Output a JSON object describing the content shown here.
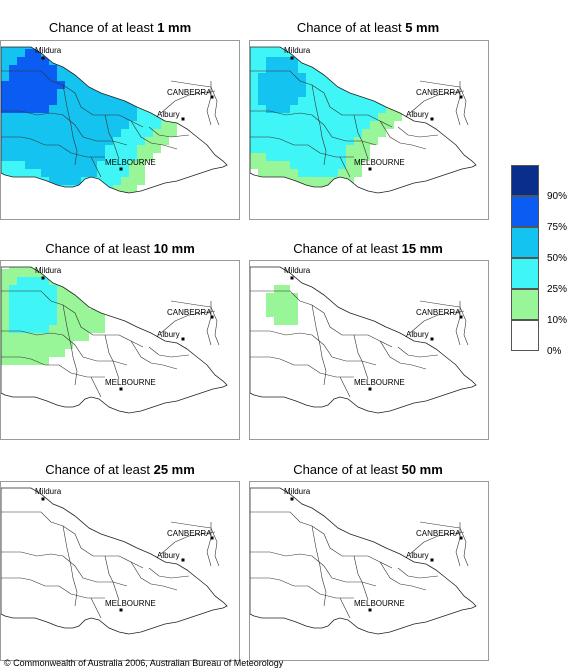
{
  "panels": [
    {
      "prefix": "Chance of at least ",
      "amount": "1 mm",
      "level": 4
    },
    {
      "prefix": "Chance of at least ",
      "amount": "5 mm",
      "level": 3
    },
    {
      "prefix": "Chance of at least ",
      "amount": "10 mm",
      "level": 2
    },
    {
      "prefix": "Chance of at least ",
      "amount": "15 mm",
      "level": 1
    },
    {
      "prefix": "Chance of at least ",
      "amount": "25 mm",
      "level": 0
    },
    {
      "prefix": "Chance of at least ",
      "amount": "50 mm",
      "level": 0
    }
  ],
  "places": {
    "mildura": "Mildura",
    "canberra": "CANBERRA",
    "albury": "Albury",
    "melbourne": "MELBOURNE"
  },
  "legend": {
    "colors": [
      "#0a2e8c",
      "#0b5cf2",
      "#15c3f0",
      "#3ff5f5",
      "#98f598",
      "#ffffff"
    ],
    "labels": [
      "90%",
      "75%",
      "50%",
      "25%",
      "10%",
      "0%"
    ]
  },
  "copyright": "© Commonwealth of Australia 2006, Australian Bureau of Meteorology"
}
